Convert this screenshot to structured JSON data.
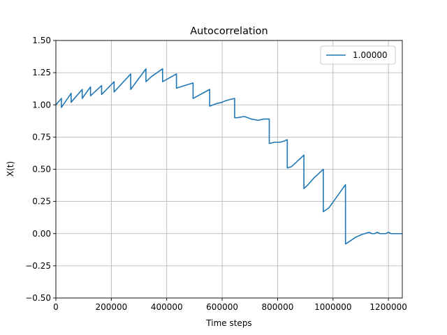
{
  "chart_data": {
    "type": "line",
    "title": "Autocorrelation",
    "xlabel": "Time steps",
    "ylabel": "X(t)",
    "xlim": [
      0,
      1250000
    ],
    "ylim": [
      -0.5,
      1.5
    ],
    "xticks": [
      0,
      200000,
      400000,
      600000,
      800000,
      1000000,
      1200000
    ],
    "xtick_labels": [
      "0",
      "200000",
      "400000",
      "600000",
      "800000",
      "1000000",
      "1200000"
    ],
    "yticks": [
      -0.5,
      -0.25,
      0.0,
      0.25,
      0.5,
      0.75,
      1.0,
      1.25,
      1.5
    ],
    "ytick_labels": [
      "−0.50",
      "−0.25",
      "0.00",
      "0.25",
      "0.50",
      "0.75",
      "1.00",
      "1.25",
      "1.50"
    ],
    "grid": true,
    "legend": "top-right",
    "series": [
      {
        "name": "1.00000",
        "color": "#1f77b4",
        "x": [
          0,
          20000,
          20000,
          55000,
          55000,
          95000,
          95000,
          125000,
          125000,
          165000,
          165000,
          210000,
          210000,
          270000,
          270000,
          325000,
          325000,
          345000,
          385000,
          385000,
          435000,
          435000,
          495000,
          495000,
          555000,
          555000,
          580000,
          600000,
          610000,
          625000,
          645000,
          645000,
          655000,
          680000,
          705000,
          730000,
          750000,
          770000,
          770000,
          790000,
          810000,
          825000,
          835000,
          835000,
          850000,
          865000,
          880000,
          895000,
          895000,
          910000,
          930000,
          950000,
          965000,
          965000,
          985000,
          1005000,
          1025000,
          1045000,
          1045000,
          1060000,
          1080000,
          1100000,
          1115000,
          1130000,
          1140000,
          1150000,
          1160000,
          1170000,
          1180000,
          1190000,
          1200000,
          1210000,
          1220000,
          1230000,
          1240000,
          1250000
        ],
        "y": [
          1.0,
          1.05,
          0.98,
          1.09,
          1.02,
          1.12,
          1.05,
          1.14,
          1.07,
          1.15,
          1.08,
          1.18,
          1.1,
          1.24,
          1.12,
          1.28,
          1.18,
          1.22,
          1.28,
          1.18,
          1.24,
          1.13,
          1.17,
          1.05,
          1.12,
          0.99,
          1.01,
          1.02,
          1.03,
          1.04,
          1.05,
          0.9,
          0.9,
          0.91,
          0.89,
          0.88,
          0.89,
          0.89,
          0.7,
          0.71,
          0.71,
          0.72,
          0.73,
          0.51,
          0.52,
          0.55,
          0.58,
          0.61,
          0.35,
          0.38,
          0.43,
          0.47,
          0.5,
          0.17,
          0.2,
          0.26,
          0.32,
          0.38,
          -0.08,
          -0.06,
          -0.03,
          -0.01,
          0.0,
          0.01,
          0.0,
          0.0,
          0.01,
          0.0,
          0.0,
          0.0,
          0.01,
          0.0,
          0.0,
          0.0,
          0.0,
          0.0
        ]
      }
    ]
  }
}
